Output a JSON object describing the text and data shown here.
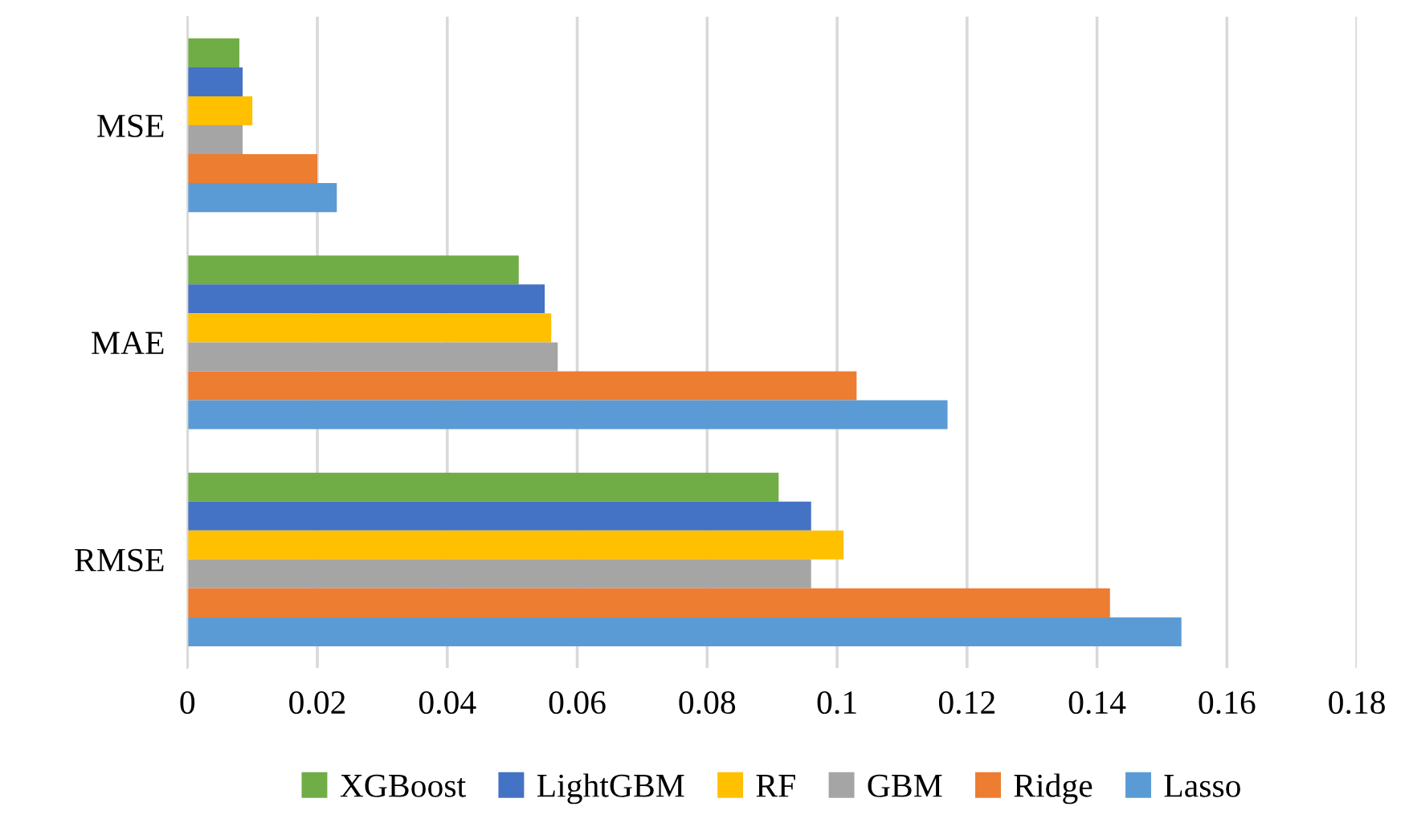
{
  "chart_data": {
    "type": "bar",
    "orientation": "horizontal",
    "categories": [
      "MSE",
      "MAE",
      "RMSE"
    ],
    "series": [
      {
        "name": "XGBoost",
        "color": "#70ad47",
        "values": [
          0.008,
          0.051,
          0.091
        ]
      },
      {
        "name": "LightGBM",
        "color": "#4472c4",
        "values": [
          0.0085,
          0.055,
          0.096
        ]
      },
      {
        "name": "RF",
        "color": "#ffc000",
        "values": [
          0.01,
          0.056,
          0.101
        ]
      },
      {
        "name": "GBM",
        "color": "#a5a5a5",
        "values": [
          0.0085,
          0.057,
          0.096
        ]
      },
      {
        "name": "Ridge",
        "color": "#ed7d31",
        "values": [
          0.02,
          0.103,
          0.142
        ]
      },
      {
        "name": "Lasso",
        "color": "#5b9bd5",
        "values": [
          0.023,
          0.117,
          0.153
        ]
      }
    ],
    "xlim": [
      0,
      0.18
    ],
    "xticks": [
      0,
      0.02,
      0.04,
      0.06,
      0.08,
      0.1,
      0.12,
      0.14,
      0.16,
      0.18
    ],
    "grid": "x",
    "legend": "bottom"
  }
}
